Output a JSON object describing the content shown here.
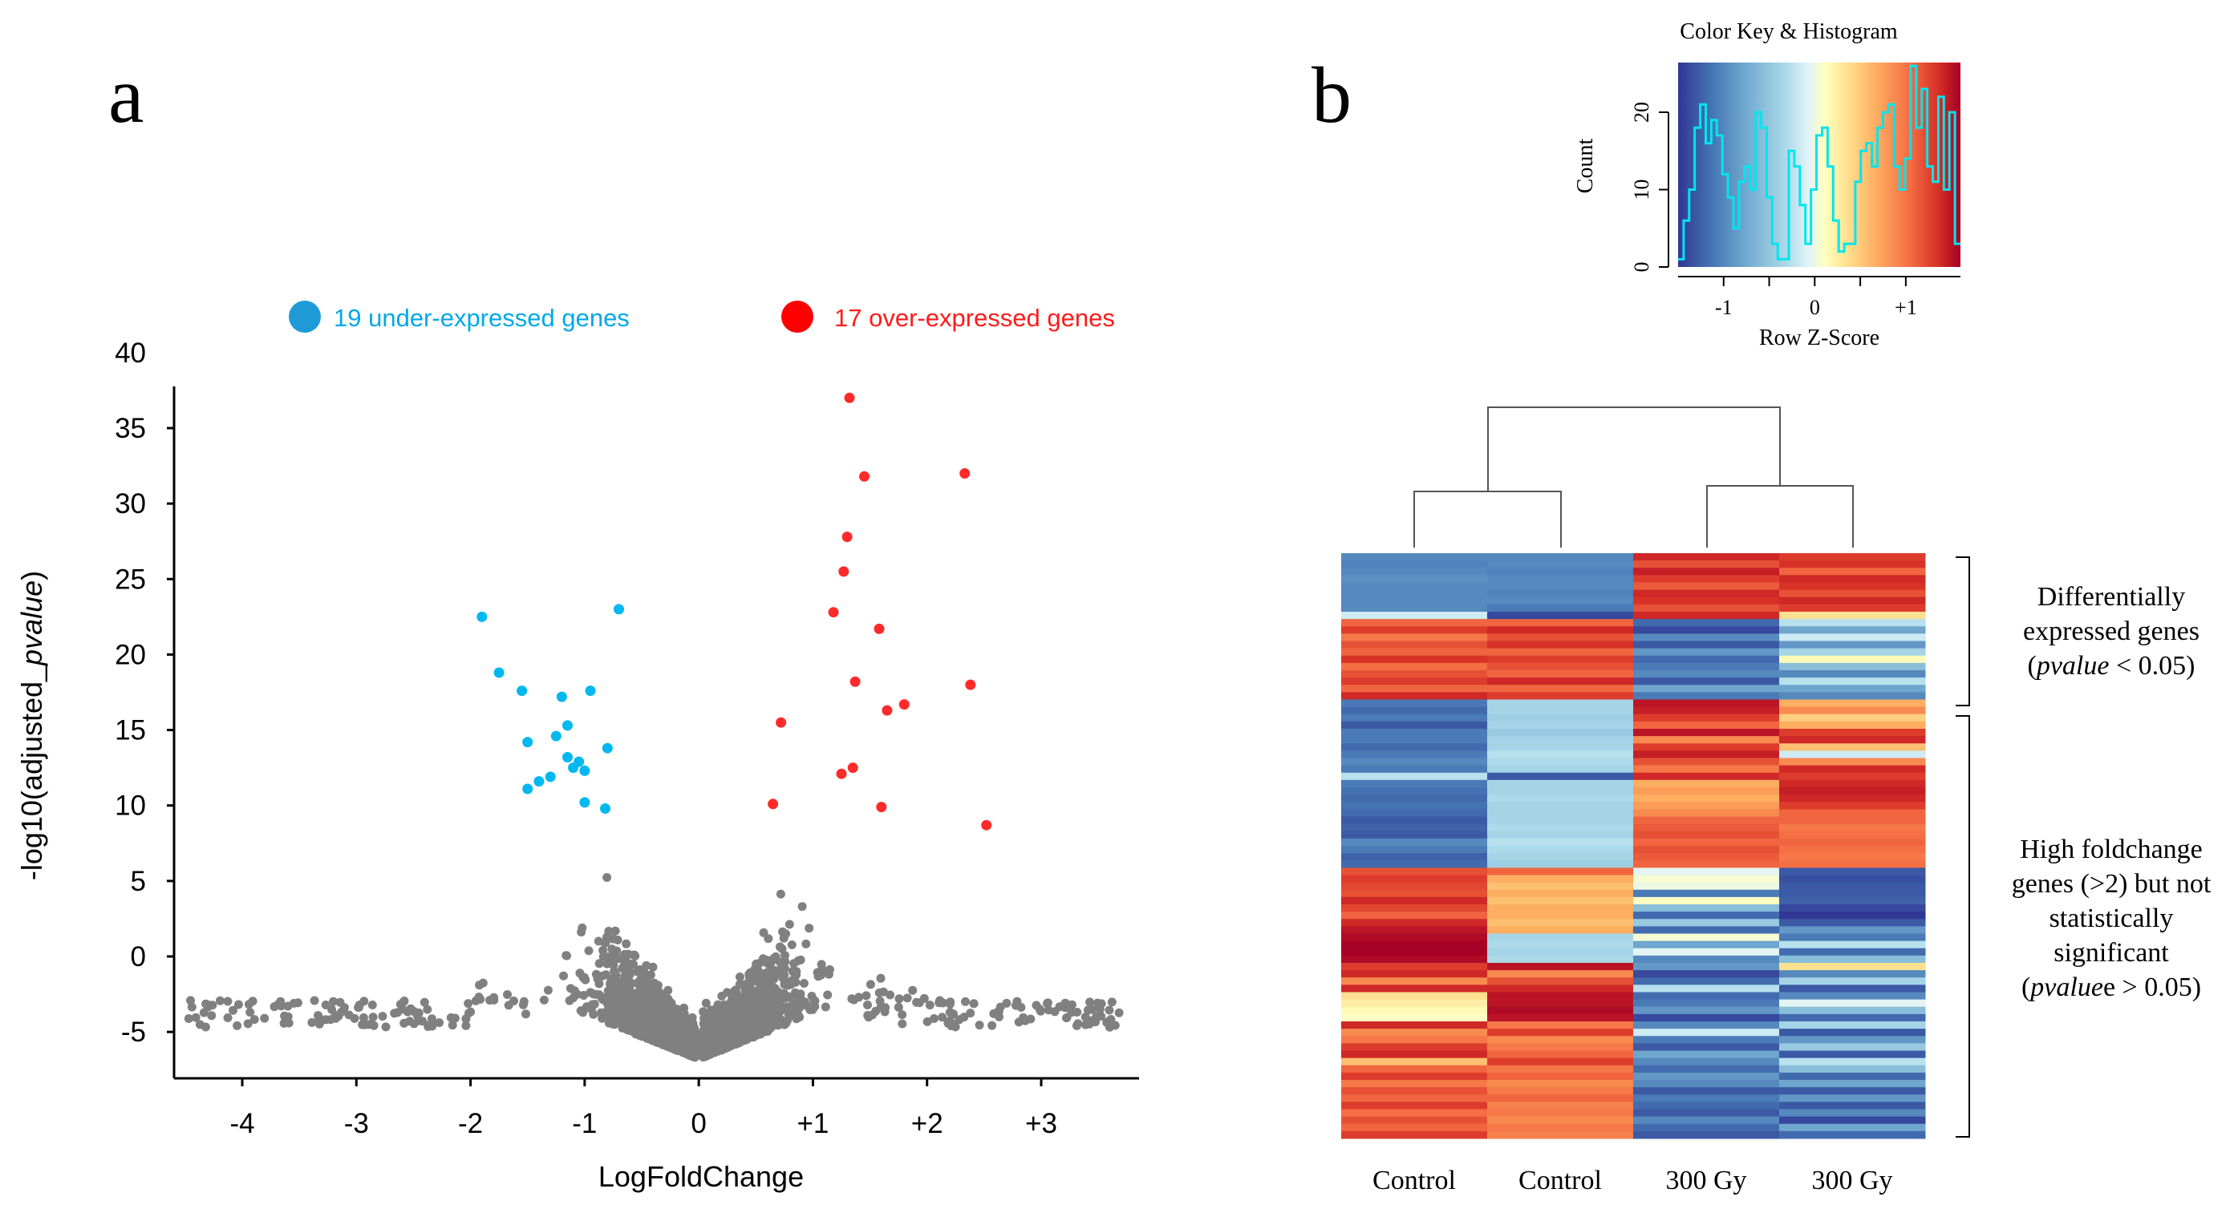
{
  "panel_a": {
    "label": "a",
    "legend": {
      "under": {
        "text": "19 under-expressed genes",
        "color": "#1e9bd7"
      },
      "over": {
        "text": "17 over-expressed genes",
        "color": "#ff0000"
      }
    },
    "colors": {
      "under": "#00b8f0",
      "over": "#ff2a2a",
      "ns": "#808080",
      "under_text": "#00a8e8",
      "over_text": "#ff1a1a"
    }
  },
  "panel_b": {
    "label": "b",
    "brackets": {
      "top": [
        "Differentially",
        "expressed genes"
      ],
      "top_p_italic": "pvalue",
      "top_p_rest": " < 0.05)",
      "bottom": [
        "High foldchange",
        "genes (>2) but not",
        "statistically",
        "significant"
      ],
      "bottom_p_italic": "pvalue",
      "bottom_p_rest": "e > 0.05)"
    }
  },
  "chart_data": [
    {
      "type": "scatter",
      "title": "",
      "xlabel": "LogFoldChange",
      "ylabel_prefix": "-log10(adjusted_",
      "ylabel_italic": "pvalue",
      "ylabel_suffix": ")",
      "xlim": [
        -4.6,
        3.9
      ],
      "ylim": [
        -7,
        38
      ],
      "x_ticks": [
        -4,
        -3,
        -2,
        -1,
        0,
        1,
        2,
        3
      ],
      "x_tick_labels": [
        "-4",
        "-3",
        "-2",
        "-1",
        "0",
        "+1",
        "+2",
        "+3"
      ],
      "y_ticks": [
        -5,
        0,
        5,
        10,
        15,
        20,
        25,
        30,
        35,
        40
      ],
      "y_tick_labels": [
        "-5",
        "0",
        "5",
        "10",
        "15",
        "20",
        "25",
        "30",
        "35",
        "40"
      ],
      "series": [
        {
          "name": "19 under-expressed genes",
          "points": [
            [
              -1.9,
              22.5
            ],
            [
              -0.7,
              23.0
            ],
            [
              -1.75,
              18.8
            ],
            [
              -1.55,
              17.6
            ],
            [
              -1.2,
              17.2
            ],
            [
              -0.95,
              17.6
            ],
            [
              -1.5,
              14.2
            ],
            [
              -1.25,
              14.6
            ],
            [
              -1.15,
              15.3
            ],
            [
              -0.8,
              13.8
            ],
            [
              -1.4,
              11.6
            ],
            [
              -1.3,
              11.9
            ],
            [
              -1.15,
              13.2
            ],
            [
              -1.05,
              12.9
            ],
            [
              -1.0,
              12.3
            ],
            [
              -1.5,
              11.1
            ],
            [
              -1.0,
              10.2
            ],
            [
              -0.82,
              9.8
            ],
            [
              -1.1,
              12.5
            ]
          ]
        },
        {
          "name": "17 over-expressed genes",
          "points": [
            [
              1.32,
              37.0
            ],
            [
              1.45,
              31.8
            ],
            [
              2.33,
              32.0
            ],
            [
              1.3,
              27.8
            ],
            [
              1.27,
              25.5
            ],
            [
              1.18,
              22.8
            ],
            [
              1.58,
              21.7
            ],
            [
              1.37,
              18.2
            ],
            [
              2.38,
              18.0
            ],
            [
              1.8,
              16.7
            ],
            [
              1.65,
              16.3
            ],
            [
              0.72,
              15.5
            ],
            [
              1.35,
              12.5
            ],
            [
              1.25,
              12.1
            ],
            [
              0.65,
              10.1
            ],
            [
              1.6,
              9.9
            ],
            [
              2.52,
              8.7
            ]
          ]
        }
      ]
    },
    {
      "type": "histogram",
      "title": "Color Key & Histogram",
      "xlabel": "Row Z-Score",
      "ylabel": "Count",
      "xlim": [
        -1.5,
        1.6
      ],
      "ylim": [
        0,
        26
      ],
      "x_ticks": [
        -1,
        0,
        1
      ],
      "x_tick_labels": [
        "-1",
        "0",
        "+1"
      ],
      "y_ticks": [
        0,
        10,
        20
      ],
      "y_tick_labels": [
        "0",
        "10",
        "20"
      ],
      "counts": [
        1,
        6,
        10,
        18,
        21,
        16,
        19,
        17,
        12,
        9,
        5,
        11,
        13,
        10,
        20,
        18,
        9,
        3,
        1,
        1,
        15,
        13,
        8,
        3,
        10,
        17,
        18,
        13,
        6,
        2,
        3,
        3,
        11,
        15,
        16,
        13,
        18,
        20,
        21,
        13,
        10,
        14,
        26,
        18,
        23,
        13,
        11,
        22,
        10,
        20,
        3
      ]
    },
    {
      "type": "heatmap",
      "columns": [
        "Control",
        "Control",
        "300 Gy",
        "300 Gy"
      ],
      "value_range": [
        -1.5,
        1.5
      ],
      "row_groups": [
        {
          "label": "Differentially expressed genes",
          "rows": 20
        },
        {
          "label": "High foldchange genes (>2) but not statistically significant",
          "rows": 60
        }
      ],
      "rows": [
        [
          -1.0,
          -1.0,
          1.3,
          1.2
        ],
        [
          -1.05,
          -1.0,
          1.1,
          1.25
        ],
        [
          -1.0,
          -1.05,
          1.35,
          1.0
        ],
        [
          -0.95,
          -1.0,
          1.2,
          1.3
        ],
        [
          -1.0,
          -1.0,
          1.05,
          1.25
        ],
        [
          -1.0,
          -1.05,
          1.3,
          1.1
        ],
        [
          -1.0,
          -1.0,
          1.25,
          1.3
        ],
        [
          -1.0,
          -1.1,
          1.1,
          1.2
        ],
        [
          -0.2,
          -1.4,
          1.3,
          0.3
        ],
        [
          1.0,
          1.0,
          -1.2,
          -0.3
        ],
        [
          1.2,
          1.3,
          -1.4,
          -0.8
        ],
        [
          0.9,
          1.1,
          -1.0,
          -0.2
        ],
        [
          1.1,
          1.25,
          -1.3,
          -0.9
        ],
        [
          1.0,
          1.0,
          -0.9,
          -0.4
        ],
        [
          1.25,
          1.2,
          -1.2,
          0.1
        ],
        [
          0.95,
          1.1,
          -1.1,
          -0.6
        ],
        [
          1.1,
          1.0,
          -1.0,
          -1.0
        ],
        [
          1.2,
          1.3,
          -1.3,
          -0.3
        ],
        [
          1.0,
          1.0,
          -0.8,
          -0.8
        ],
        [
          1.3,
          1.2,
          -1.1,
          -1.0
        ],
        [
          -1.1,
          -0.4,
          1.4,
          0.6
        ],
        [
          -1.2,
          -0.4,
          1.35,
          0.8
        ],
        [
          -1.1,
          -0.45,
          1.2,
          0.4
        ],
        [
          -1.3,
          -0.4,
          1.0,
          0.6
        ],
        [
          -1.1,
          -0.5,
          1.4,
          1.2
        ],
        [
          -1.1,
          -0.4,
          0.8,
          1.3
        ],
        [
          -1.2,
          -0.4,
          1.2,
          0.5
        ],
        [
          -1.1,
          -0.3,
          1.35,
          -0.2
        ],
        [
          -1.0,
          -0.35,
          1.1,
          0.8
        ],
        [
          -1.1,
          -0.4,
          0.9,
          1.3
        ],
        [
          -0.3,
          -1.3,
          1.3,
          1.2
        ],
        [
          -1.1,
          -0.4,
          0.6,
          1.3
        ],
        [
          -1.15,
          -0.4,
          0.7,
          1.35
        ],
        [
          -1.2,
          -0.35,
          0.6,
          1.3
        ],
        [
          -1.15,
          -0.4,
          0.7,
          1.2
        ],
        [
          -1.2,
          -0.4,
          0.8,
          1.0
        ],
        [
          -1.3,
          -0.4,
          1.0,
          1.0
        ],
        [
          -1.25,
          -0.35,
          1.05,
          0.9
        ],
        [
          -1.3,
          -0.4,
          1.1,
          0.95
        ],
        [
          -1.0,
          -0.3,
          1.0,
          1.0
        ],
        [
          -1.1,
          -0.35,
          1.1,
          0.95
        ],
        [
          -1.25,
          -0.4,
          1.05,
          0.9
        ],
        [
          -1.2,
          -0.45,
          1.0,
          0.95
        ],
        [
          1.1,
          1.0,
          -0.1,
          -1.3
        ],
        [
          1.2,
          0.6,
          0.0,
          -1.35
        ],
        [
          1.15,
          0.5,
          -0.05,
          -1.3
        ],
        [
          1.1,
          0.6,
          -1.1,
          -1.3
        ],
        [
          1.3,
          0.5,
          0.05,
          -1.25
        ],
        [
          1.15,
          0.6,
          -0.6,
          -1.4
        ],
        [
          1.0,
          0.6,
          -1.2,
          -1.5
        ],
        [
          1.3,
          0.5,
          -0.5,
          -1.3
        ],
        [
          1.4,
          0.6,
          -1.2,
          -0.9
        ],
        [
          1.45,
          -0.4,
          0.0,
          -1.1
        ],
        [
          1.5,
          -0.35,
          -0.8,
          -0.3
        ],
        [
          1.5,
          -0.4,
          -0.1,
          -1.2
        ],
        [
          1.45,
          -0.35,
          -1.0,
          -0.6
        ],
        [
          1.2,
          1.4,
          -0.9,
          0.3
        ],
        [
          1.3,
          0.8,
          -1.4,
          -1.0
        ],
        [
          0.8,
          1.1,
          -1.2,
          -0.4
        ],
        [
          1.3,
          1.3,
          -0.3,
          -1.3
        ],
        [
          0.3,
          1.4,
          -1.2,
          -1.0
        ],
        [
          0.2,
          1.4,
          -1.1,
          -0.1
        ],
        [
          0.1,
          1.45,
          -0.9,
          -0.6
        ],
        [
          0.05,
          1.4,
          -1.4,
          -1.2
        ],
        [
          1.3,
          0.9,
          -1.0,
          -0.4
        ],
        [
          0.8,
          1.2,
          -0.2,
          -1.3
        ],
        [
          0.9,
          0.8,
          -1.1,
          -0.9
        ],
        [
          1.2,
          0.9,
          -1.3,
          -0.5
        ],
        [
          1.3,
          1.0,
          -0.8,
          -1.3
        ],
        [
          0.5,
          1.2,
          -1.0,
          -0.3
        ],
        [
          1.0,
          0.9,
          -1.2,
          -0.6
        ],
        [
          1.2,
          1.0,
          -0.9,
          -1.2
        ],
        [
          0.9,
          0.8,
          -1.0,
          -0.8
        ],
        [
          1.1,
          0.9,
          -1.3,
          -1.3
        ],
        [
          1.0,
          1.0,
          -1.1,
          -0.9
        ],
        [
          1.2,
          0.85,
          -1.2,
          -1.3
        ],
        [
          0.95,
          0.9,
          -1.3,
          -1.0
        ],
        [
          1.1,
          0.8,
          -1.0,
          -1.4
        ],
        [
          1.0,
          0.9,
          -1.2,
          -0.8
        ],
        [
          1.2,
          0.85,
          -1.3,
          -1.2
        ]
      ]
    }
  ]
}
